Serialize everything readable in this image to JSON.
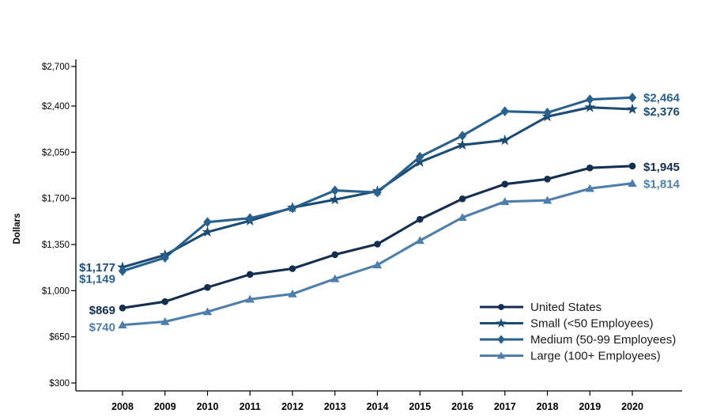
{
  "chart_data": {
    "type": "line",
    "title": "",
    "xlabel": "",
    "ylabel": "Dollars",
    "grid": false,
    "legend_position": "inside-bottom-right",
    "categories": [
      "2008",
      "2009",
      "2010",
      "2011",
      "2012",
      "2013",
      "2014",
      "2015",
      "2016",
      "2017",
      "2018",
      "2019",
      "2020"
    ],
    "y_axis": {
      "min": 300,
      "max": 2700,
      "ticks": [
        300,
        650,
        1000,
        1350,
        1700,
        2050,
        2400,
        2700
      ],
      "tick_labels": [
        "$300",
        "$650",
        "$1,000",
        "$1,350",
        "$1,700",
        "$2,050",
        "$2,400",
        "$2,700"
      ]
    },
    "series": [
      {
        "name": "United States",
        "marker": "circle",
        "color": "#142E4F",
        "values": [
          869,
          917,
          1025,
          1123,
          1167,
          1273,
          1353,
          1541,
          1696,
          1808,
          1846,
          1931,
          1945
        ],
        "left_label": "$869",
        "right_label": "$1,945"
      },
      {
        "name": "Small (<50 Employees)",
        "marker": "star",
        "color": "#1C4C74",
        "values": [
          1177,
          1270,
          1445,
          1530,
          1630,
          1690,
          1755,
          1975,
          2105,
          2140,
          2320,
          2390,
          2376
        ],
        "left_label": "$1,177",
        "right_label": "$2,376"
      },
      {
        "name": "Medium (50-99 Employees)",
        "marker": "diamond",
        "color": "#29618E",
        "values": [
          1149,
          1250,
          1520,
          1550,
          1625,
          1760,
          1745,
          2015,
          2175,
          2360,
          2350,
          2450,
          2464
        ],
        "left_label": "$1,149",
        "right_label": "$2,464"
      },
      {
        "name": "Large (100+ Employees)",
        "marker": "triangle",
        "color": "#4D7EAC",
        "values": [
          740,
          765,
          840,
          935,
          975,
          1090,
          1195,
          1380,
          1555,
          1675,
          1685,
          1775,
          1814
        ],
        "left_label": "$740",
        "right_label": "$1,814"
      }
    ],
    "legend": {
      "items": [
        "United States",
        "Small (<50 Employees)",
        "Medium (50-99 Employees)",
        "Large (100+ Employees)"
      ]
    },
    "text_color": "#000000",
    "legend_text_color": "#1a1a1a"
  }
}
